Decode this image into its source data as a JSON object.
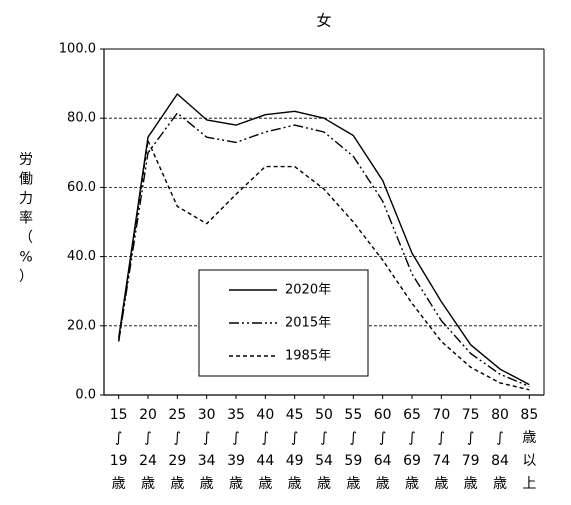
{
  "chart_data": {
    "type": "line",
    "title": "女",
    "ylabel": [
      "労",
      "働",
      "力",
      "率",
      "（",
      "%",
      "）"
    ],
    "ylim": [
      0,
      100
    ],
    "yticks": [
      "0.0",
      "20.0",
      "40.0",
      "60.0",
      "80.0",
      "100.0"
    ],
    "grid": "horizontal-dashed",
    "legend_position": "lower-left-inside",
    "categories": [
      [
        "15",
        "∫",
        "19",
        "歳"
      ],
      [
        "20",
        "∫",
        "24",
        "歳"
      ],
      [
        "25",
        "∫",
        "29",
        "歳"
      ],
      [
        "30",
        "∫",
        "34",
        "歳"
      ],
      [
        "35",
        "∫",
        "39",
        "歳"
      ],
      [
        "40",
        "∫",
        "44",
        "歳"
      ],
      [
        "45",
        "∫",
        "49",
        "歳"
      ],
      [
        "50",
        "∫",
        "54",
        "歳"
      ],
      [
        "55",
        "∫",
        "59",
        "歳"
      ],
      [
        "60",
        "∫",
        "64",
        "歳"
      ],
      [
        "65",
        "∫",
        "69",
        "歳"
      ],
      [
        "70",
        "∫",
        "74",
        "歳"
      ],
      [
        "75",
        "∫",
        "79",
        "歳"
      ],
      [
        "80",
        "∫",
        "84",
        "歳"
      ],
      [
        "85",
        "歳",
        "以",
        "上"
      ]
    ],
    "series": [
      {
        "name": "2020年",
        "style": "solid",
        "values": [
          16.5,
          74.5,
          87,
          79.5,
          78,
          81,
          82,
          80,
          75,
          62,
          41,
          27,
          14.5,
          7.5,
          3
        ]
      },
      {
        "name": "2015年",
        "style": "dashdotdot",
        "values": [
          15.5,
          70,
          81.5,
          74.5,
          73,
          76,
          78,
          76,
          69,
          56,
          35,
          21.5,
          12,
          6,
          2.5
        ]
      },
      {
        "name": "1985年",
        "style": "dashed",
        "values": [
          15.5,
          73.5,
          54.5,
          49.5,
          58,
          66,
          66,
          59.5,
          50,
          39,
          26.5,
          15.5,
          8,
          3.5,
          1.5
        ]
      }
    ]
  }
}
